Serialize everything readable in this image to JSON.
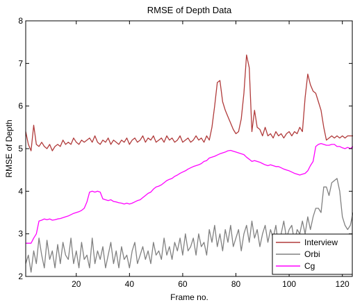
{
  "chart_data": {
    "type": "line",
    "title": "RMSE of Depth Data",
    "xlabel": "Frame no.",
    "ylabel": "RMSE of Depth",
    "xlim": [
      1,
      124
    ],
    "ylim": [
      2,
      8
    ],
    "xticks": [
      20,
      40,
      60,
      80,
      100,
      120
    ],
    "yticks": [
      2,
      3,
      4,
      5,
      6,
      7,
      8
    ],
    "grid": false,
    "legend_position": "bottom-right",
    "series": [
      {
        "name": "Interview",
        "color": "#b03a3a",
        "x": [
          1,
          2,
          3,
          4,
          5,
          6,
          7,
          8,
          9,
          10,
          11,
          12,
          13,
          14,
          15,
          16,
          17,
          18,
          19,
          20,
          21,
          22,
          23,
          24,
          25,
          26,
          27,
          28,
          29,
          30,
          31,
          32,
          33,
          34,
          35,
          36,
          37,
          38,
          39,
          40,
          41,
          42,
          43,
          44,
          45,
          46,
          47,
          48,
          49,
          50,
          51,
          52,
          53,
          54,
          55,
          56,
          57,
          58,
          59,
          60,
          61,
          62,
          63,
          64,
          65,
          66,
          67,
          68,
          69,
          70,
          71,
          72,
          73,
          74,
          75,
          76,
          77,
          78,
          79,
          80,
          81,
          82,
          83,
          84,
          85,
          86,
          87,
          88,
          89,
          90,
          91,
          92,
          93,
          94,
          95,
          96,
          97,
          98,
          99,
          100,
          101,
          102,
          103,
          104,
          105,
          106,
          107,
          108,
          109,
          110,
          111,
          112,
          113,
          114,
          115,
          116,
          117,
          118,
          119,
          120,
          121,
          122,
          123,
          124
        ],
        "values": [
          5.4,
          5.1,
          4.95,
          5.55,
          5.1,
          5.05,
          5.15,
          5.05,
          5.0,
          5.1,
          4.95,
          5.05,
          5.1,
          5.05,
          5.2,
          5.1,
          5.15,
          5.1,
          5.25,
          5.15,
          5.1,
          5.2,
          5.15,
          5.2,
          5.25,
          5.15,
          5.3,
          5.15,
          5.1,
          5.2,
          5.15,
          5.25,
          5.1,
          5.2,
          5.15,
          5.1,
          5.2,
          5.15,
          5.25,
          5.1,
          5.2,
          5.25,
          5.15,
          5.2,
          5.3,
          5.15,
          5.25,
          5.2,
          5.3,
          5.15,
          5.2,
          5.25,
          5.15,
          5.3,
          5.2,
          5.25,
          5.15,
          5.2,
          5.3,
          5.15,
          5.2,
          5.25,
          5.15,
          5.2,
          5.3,
          5.2,
          5.25,
          5.15,
          5.3,
          5.2,
          5.5,
          6.0,
          6.55,
          6.6,
          6.1,
          5.9,
          5.75,
          5.6,
          5.45,
          5.35,
          5.4,
          5.7,
          6.3,
          7.2,
          6.9,
          5.4,
          5.9,
          5.5,
          5.45,
          5.3,
          5.5,
          5.3,
          5.35,
          5.25,
          5.4,
          5.3,
          5.35,
          5.25,
          5.35,
          5.4,
          5.3,
          5.4,
          5.35,
          5.5,
          5.4,
          6.2,
          6.75,
          6.5,
          6.35,
          6.3,
          6.1,
          5.9,
          5.5,
          5.2,
          5.25,
          5.3,
          5.25,
          5.3,
          5.25,
          5.3,
          5.25,
          5.3,
          5.3,
          5.3
        ]
      },
      {
        "name": "Orbi",
        "color": "#808080",
        "x": [
          1,
          2,
          3,
          4,
          5,
          6,
          7,
          8,
          9,
          10,
          11,
          12,
          13,
          14,
          15,
          16,
          17,
          18,
          19,
          20,
          21,
          22,
          23,
          24,
          25,
          26,
          27,
          28,
          29,
          30,
          31,
          32,
          33,
          34,
          35,
          36,
          37,
          38,
          39,
          40,
          41,
          42,
          43,
          44,
          45,
          46,
          47,
          48,
          49,
          50,
          51,
          52,
          53,
          54,
          55,
          56,
          57,
          58,
          59,
          60,
          61,
          62,
          63,
          64,
          65,
          66,
          67,
          68,
          69,
          70,
          71,
          72,
          73,
          74,
          75,
          76,
          77,
          78,
          79,
          80,
          81,
          82,
          83,
          84,
          85,
          86,
          87,
          88,
          89,
          90,
          91,
          92,
          93,
          94,
          95,
          96,
          97,
          98,
          99,
          100,
          101,
          102,
          103,
          104,
          105,
          106,
          107,
          108,
          109,
          110,
          111,
          112,
          113,
          114,
          115,
          116,
          117,
          118,
          119,
          120,
          121,
          122,
          123,
          124
        ],
        "values": [
          2.3,
          2.5,
          2.1,
          2.6,
          2.3,
          2.9,
          2.5,
          2.2,
          2.85,
          2.4,
          2.6,
          2.2,
          2.75,
          2.3,
          2.8,
          2.5,
          2.4,
          2.9,
          2.3,
          2.6,
          2.2,
          2.8,
          2.4,
          2.5,
          2.2,
          2.9,
          2.3,
          2.6,
          2.4,
          2.7,
          2.2,
          2.5,
          2.8,
          2.3,
          2.6,
          2.2,
          2.7,
          2.4,
          2.5,
          2.2,
          2.6,
          2.8,
          2.3,
          2.5,
          2.7,
          2.4,
          2.6,
          2.3,
          2.8,
          2.5,
          2.6,
          2.4,
          2.9,
          2.5,
          2.7,
          2.4,
          2.8,
          2.6,
          2.9,
          2.5,
          3.0,
          2.6,
          2.7,
          2.9,
          2.5,
          3.0,
          2.7,
          2.8,
          2.5,
          3.1,
          2.8,
          3.2,
          2.7,
          3.0,
          2.6,
          3.1,
          2.8,
          3.2,
          2.7,
          2.9,
          3.1,
          2.6,
          3.0,
          3.2,
          2.8,
          3.3,
          2.9,
          3.1,
          2.7,
          3.0,
          3.2,
          2.8,
          3.1,
          2.9,
          3.2,
          2.7,
          3.0,
          3.3,
          2.9,
          3.1,
          3.2,
          2.8,
          3.1,
          3.0,
          3.3,
          3.0,
          3.4,
          3.1,
          3.4,
          3.6,
          3.6,
          3.5,
          4.1,
          4.1,
          3.9,
          4.2,
          4.25,
          4.3,
          4.0,
          3.4,
          3.2,
          3.1,
          3.2,
          3.5
        ]
      },
      {
        "name": "Cg",
        "color": "#ff00ff",
        "x": [
          1,
          2,
          3,
          4,
          5,
          6,
          7,
          8,
          9,
          10,
          11,
          12,
          13,
          14,
          15,
          16,
          17,
          18,
          19,
          20,
          21,
          22,
          23,
          24,
          25,
          26,
          27,
          28,
          29,
          30,
          31,
          32,
          33,
          34,
          35,
          36,
          37,
          38,
          39,
          40,
          41,
          42,
          43,
          44,
          45,
          46,
          47,
          48,
          49,
          50,
          51,
          52,
          53,
          54,
          55,
          56,
          57,
          58,
          59,
          60,
          61,
          62,
          63,
          64,
          65,
          66,
          67,
          68,
          69,
          70,
          71,
          72,
          73,
          74,
          75,
          76,
          77,
          78,
          79,
          80,
          81,
          82,
          83,
          84,
          85,
          86,
          87,
          88,
          89,
          90,
          91,
          92,
          93,
          94,
          95,
          96,
          97,
          98,
          99,
          100,
          101,
          102,
          103,
          104,
          105,
          106,
          107,
          108,
          109,
          110,
          111,
          112,
          113,
          114,
          115,
          116,
          117,
          118,
          119,
          120,
          121,
          122,
          123,
          124
        ],
        "values": [
          2.78,
          2.78,
          2.78,
          2.9,
          3.0,
          3.3,
          3.32,
          3.35,
          3.33,
          3.35,
          3.32,
          3.33,
          3.35,
          3.36,
          3.38,
          3.4,
          3.42,
          3.45,
          3.48,
          3.5,
          3.52,
          3.55,
          3.6,
          3.75,
          3.98,
          4.0,
          3.98,
          4.0,
          3.98,
          3.82,
          3.8,
          3.78,
          3.8,
          3.76,
          3.75,
          3.73,
          3.72,
          3.7,
          3.72,
          3.7,
          3.72,
          3.75,
          3.78,
          3.8,
          3.85,
          3.9,
          3.95,
          3.98,
          4.05,
          4.1,
          4.12,
          4.15,
          4.2,
          4.25,
          4.28,
          4.3,
          4.35,
          4.38,
          4.42,
          4.45,
          4.48,
          4.52,
          4.55,
          4.58,
          4.6,
          4.62,
          4.65,
          4.7,
          4.72,
          4.78,
          4.8,
          4.82,
          4.85,
          4.88,
          4.9,
          4.92,
          4.95,
          4.96,
          4.94,
          4.92,
          4.9,
          4.88,
          4.86,
          4.8,
          4.75,
          4.7,
          4.72,
          4.7,
          4.68,
          4.65,
          4.62,
          4.6,
          4.62,
          4.6,
          4.58,
          4.58,
          4.55,
          4.52,
          4.5,
          4.48,
          4.45,
          4.42,
          4.4,
          4.38,
          4.4,
          4.42,
          4.48,
          4.6,
          4.7,
          5.05,
          5.1,
          5.12,
          5.1,
          5.08,
          5.08,
          5.1,
          5.1,
          5.05,
          5.05,
          5.02,
          5.0,
          5.03,
          5.0,
          5.05
        ]
      }
    ]
  }
}
